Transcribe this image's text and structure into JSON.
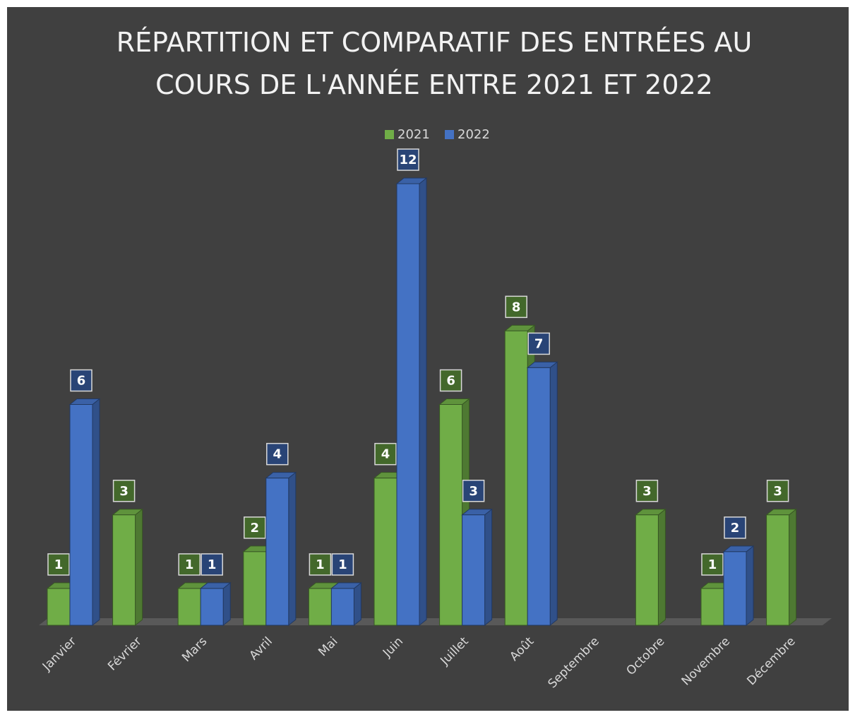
{
  "chart_data": {
    "type": "bar3d",
    "title": "RÉPARTITION ET COMPARATIF DES ENTRÉES AU COURS DE L'ANNÉE ENTRE 2021 ET 2022",
    "categories": [
      "Janvier",
      "Février",
      "Mars",
      "Avril",
      "Mai",
      "Juin",
      "Juillet",
      "Août",
      "Septembre",
      "Octobre",
      "Novembre",
      "Décembre"
    ],
    "series": [
      {
        "name": "2021",
        "color": "#70ad47",
        "values": [
          1,
          3,
          1,
          2,
          1,
          4,
          6,
          8,
          null,
          3,
          1,
          3
        ]
      },
      {
        "name": "2022",
        "color": "#4472c4",
        "values": [
          6,
          null,
          1,
          4,
          1,
          12,
          3,
          7,
          null,
          null,
          2,
          null
        ]
      }
    ],
    "legend": "top"
  }
}
